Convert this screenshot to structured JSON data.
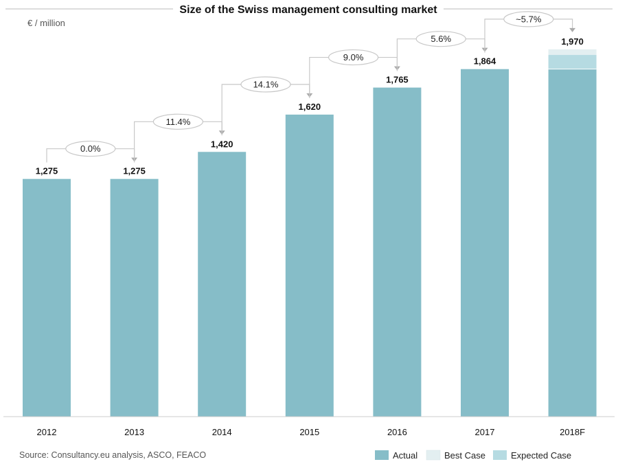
{
  "chart_data": {
    "type": "bar",
    "title": "Size of the Swiss management consulting market",
    "unit_label": "€ / million",
    "categories": [
      "2012",
      "2013",
      "2014",
      "2015",
      "2016",
      "2017",
      "2018F"
    ],
    "series": [
      {
        "name": "Actual",
        "values": [
          1275,
          1275,
          1420,
          1620,
          1765,
          1864,
          1864
        ]
      },
      {
        "name": "Expected Case",
        "values": [
          0,
          0,
          0,
          0,
          0,
          0,
          76
        ]
      },
      {
        "name": "Best Case",
        "values": [
          0,
          0,
          0,
          0,
          0,
          0,
          30
        ]
      }
    ],
    "value_labels": [
      "1,275",
      "1,275",
      "1,420",
      "1,620",
      "1,765",
      "1,864",
      "1,970"
    ],
    "growth_labels": [
      "0.0%",
      "11.4%",
      "14.1%",
      "9.0%",
      "5.6%",
      "~5.7%"
    ],
    "ylim": [
      0,
      2150
    ],
    "xlabel": "",
    "ylabel": "",
    "grid": false,
    "legend_position": "bottom-right",
    "source": "Source: Consultancy.eu analysis, ASCO, FEACO",
    "colors": {
      "actual": "#86bdc8",
      "best_case": "#e3eff1",
      "expected_case": "#b6dbe2",
      "axis": "#cccccc",
      "arrow": "#c8c8c8"
    }
  }
}
